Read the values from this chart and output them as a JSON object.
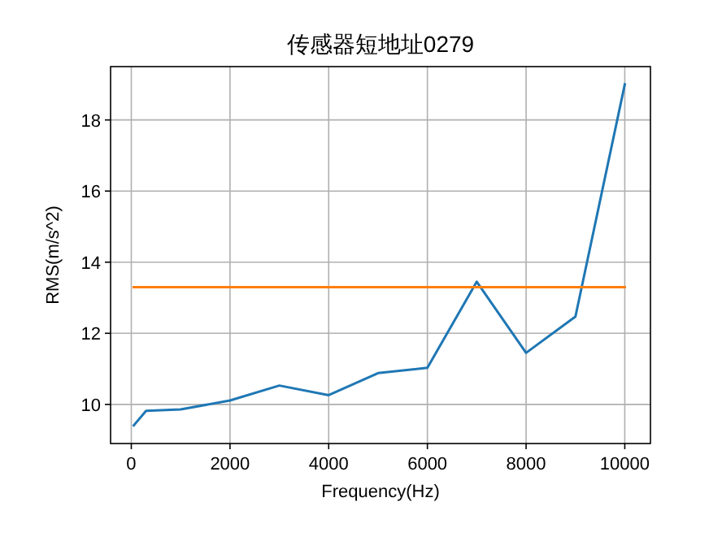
{
  "chart_data": {
    "type": "line",
    "title": "传感器短地址0279",
    "xlabel": "Frequency(Hz)",
    "ylabel": "RMS(m/s^2)",
    "xlim": [
      -420,
      10520
    ],
    "ylim": [
      8.9,
      19.5
    ],
    "xticks": [
      0,
      2000,
      4000,
      6000,
      8000,
      10000
    ],
    "yticks": [
      10,
      12,
      14,
      16,
      18
    ],
    "grid": true,
    "series": [
      {
        "color": "#1f77b4",
        "x": [
          50,
          300,
          1000,
          2000,
          3000,
          4000,
          5000,
          6000,
          7000,
          8000,
          9000,
          10000
        ],
        "values": [
          9.41,
          9.82,
          9.86,
          10.11,
          10.53,
          10.26,
          10.88,
          11.03,
          13.45,
          11.45,
          12.47,
          19.0
        ]
      },
      {
        "color": "#ff7f0e",
        "x": [
          50,
          10000
        ],
        "values": [
          13.3,
          13.3
        ]
      }
    ]
  }
}
